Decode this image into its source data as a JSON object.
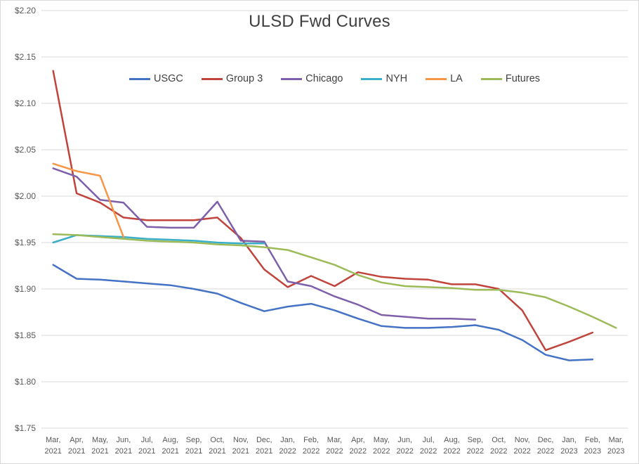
{
  "chart_data": {
    "type": "line",
    "title": "ULSD Fwd Curves",
    "xlabel": "",
    "ylabel": "",
    "ylim": [
      1.75,
      2.2
    ],
    "grid": "horizontal",
    "legend_position": "top-center",
    "y_ticks": [
      "$2.20",
      "$2.15",
      "$2.10",
      "$2.05",
      "$2.00",
      "$1.95",
      "$1.90",
      "$1.85",
      "$1.80",
      "$1.75"
    ],
    "categories": [
      "Mar, 2021",
      "Apr, 2021",
      "May, 2021",
      "Jun, 2021",
      "Jul, 2021",
      "Aug, 2021",
      "Sep, 2021",
      "Oct, 2021",
      "Nov, 2021",
      "Dec, 2021",
      "Jan, 2022",
      "Feb, 2022",
      "Mar, 2022",
      "Apr, 2022",
      "May, 2022",
      "Jun, 2022",
      "Jul, 2022",
      "Aug, 2022",
      "Sep, 2022",
      "Oct, 2022",
      "Nov, 2022",
      "Dec, 2022",
      "Jan, 2023",
      "Feb, 2023",
      "Mar, 2023"
    ],
    "series": [
      {
        "name": "USGC",
        "color": "#4472C4",
        "values": [
          1.926,
          1.911,
          1.91,
          1.908,
          1.906,
          1.904,
          1.9,
          1.895,
          1.885,
          1.876,
          1.881,
          1.884,
          1.877,
          1.868,
          1.86,
          1.858,
          1.858,
          1.859,
          1.861,
          1.856,
          1.845,
          1.829,
          1.823,
          1.824
        ]
      },
      {
        "name": "Group 3",
        "color": "#C0443C",
        "values": [
          2.135,
          2.003,
          1.993,
          1.977,
          1.974,
          1.974,
          1.974,
          1.977,
          1.955,
          1.921,
          1.902,
          1.914,
          1.903,
          1.918,
          1.913,
          1.911,
          1.91,
          1.905,
          1.905,
          1.9,
          1.877,
          1.834,
          1.843,
          1.853
        ]
      },
      {
        "name": "Chicago",
        "color": "#7D5FAA",
        "values": [
          2.03,
          2.021,
          1.996,
          1.993,
          1.967,
          1.966,
          1.966,
          1.994,
          1.952,
          1.951,
          1.908,
          1.903,
          1.892,
          1.883,
          1.872,
          1.87,
          1.868,
          1.868,
          1.867
        ]
      },
      {
        "name": "NYH",
        "color": "#3BAEC8",
        "values": [
          1.95,
          1.958,
          1.957,
          1.956,
          1.954,
          1.953,
          1.952,
          1.95,
          1.949,
          1.949
        ]
      },
      {
        "name": "LA",
        "color": "#F79646",
        "values": [
          2.035,
          2.027,
          2.022,
          1.956
        ]
      },
      {
        "name": "Futures",
        "color": "#9CBB58",
        "values": [
          1.959,
          1.958,
          1.956,
          1.954,
          1.952,
          1.951,
          1.95,
          1.948,
          1.947,
          1.945,
          1.942,
          1.934,
          1.926,
          1.915,
          1.907,
          1.903,
          1.902,
          1.901,
          1.899,
          1.899,
          1.896,
          1.891,
          1.881,
          1.87,
          1.858
        ]
      }
    ]
  }
}
